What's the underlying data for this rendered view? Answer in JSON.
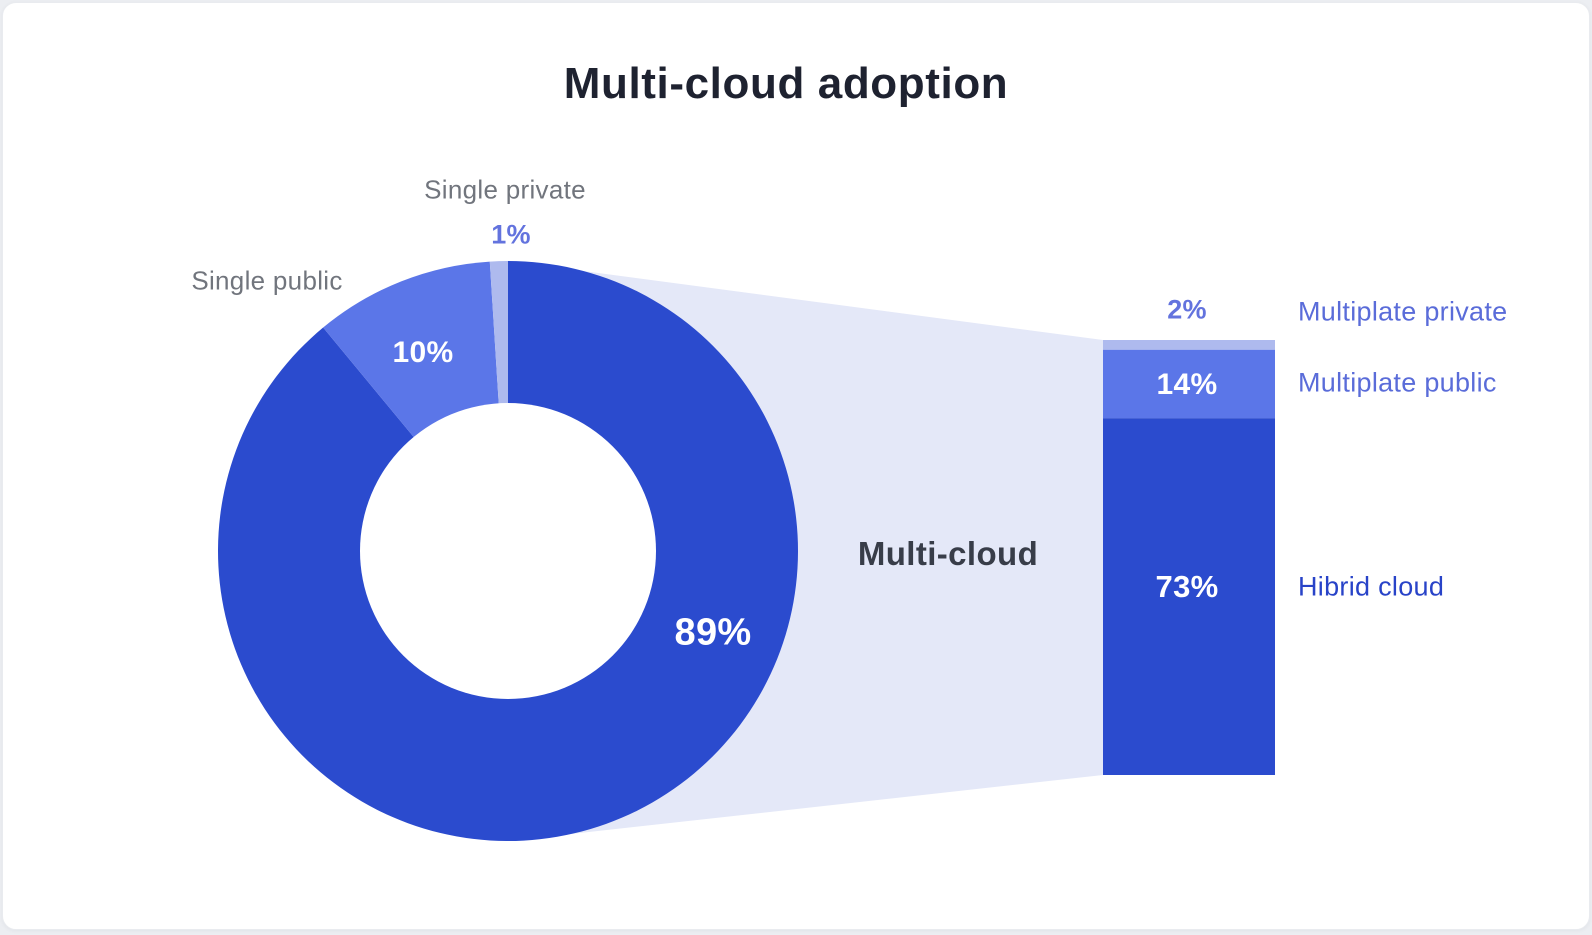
{
  "labels": {
    "title": "Multi-cloud adoption",
    "single_private": "Single private",
    "single_private_pct": "1%",
    "single_public": "Single public",
    "single_public_pct": "10%",
    "multicloud_pct": "89%",
    "connector": "Multi-cloud",
    "multiplate_private_pct": "2%",
    "multiplate_private": "Multiplate private",
    "multiplate_public_pct": "14%",
    "multiplate_public": "Multiplate public",
    "hibrid_pct": "73%",
    "hibrid": "Hibrid cloud"
  },
  "colors": {
    "dark_blue": "#2B4BCE",
    "medium_blue": "#5B76E8",
    "light_lavender": "#AEBAEE",
    "funnel": "#E4E8F8",
    "title_text": "#1E2230",
    "connector_text": "#383D49",
    "gray_label": "#71757D",
    "accent_percent": "#6373DE",
    "right_label": "#5A6CD9",
    "hibrid_label": "#2843C8",
    "bar_white_text": "#FFFFFF",
    "card_bg": "#FFFFFF",
    "page_bg": "#ECEEF2"
  },
  "chart_data": [
    {
      "type": "pie",
      "subtype": "donut",
      "title": "Multi-cloud adoption",
      "categories": [
        "Multi-cloud",
        "Single public",
        "Single private"
      ],
      "values": [
        89,
        10,
        1
      ],
      "unit": "%",
      "data_labels": [
        "89%",
        "10%",
        "1%"
      ],
      "colors": [
        "#2B4BCE",
        "#5B76E8",
        "#AEBAEE"
      ],
      "start_angle_deg": 0,
      "direction": "clockwise",
      "inner_radius_ratio": 0.51,
      "legend_position": "outside-labels"
    },
    {
      "type": "bar",
      "subtype": "stacked-vertical",
      "categories": [
        "Multiplate private",
        "Multiplate public",
        "Hibrid cloud"
      ],
      "values": [
        2,
        14,
        73
      ],
      "unit": "%",
      "data_labels": [
        "2%",
        "14%",
        "73%"
      ],
      "colors": [
        "#AEBAEE",
        "#5B76E8",
        "#2B4BCE"
      ],
      "order": "top-to-bottom",
      "connector_label": "Multi-cloud",
      "connector_source_slice": "Multi-cloud"
    }
  ]
}
